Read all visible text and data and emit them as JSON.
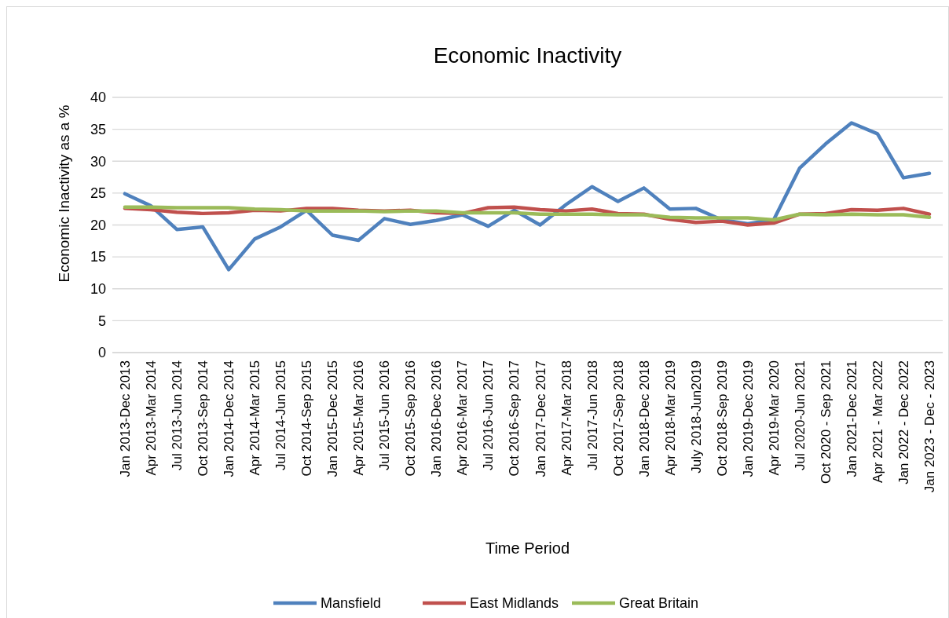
{
  "chart_data": {
    "type": "line",
    "title": "Economic Inactivity",
    "xlabel": "Time Period",
    "ylabel": "Economic Inactivity as a %",
    "categories": [
      "Jan 2013-Dec 2013",
      "Apr 2013-Mar 2014",
      "Jul 2013-Jun 2014",
      "Oct 2013-Sep 2014",
      "Jan 2014-Dec 2014",
      "Apr 2014-Mar 2015",
      "Jul 2014-Jun 2015",
      "Oct 2014-Sep 2015",
      "Jan 2015-Dec 2015",
      "Apr 2015-Mar 2016",
      "Jul 2015-Jun 2016",
      "Oct 2015-Sep 2016",
      "Jan 2016-Dec 2016",
      "Apr 2016-Mar 2017",
      "Jul 2016-Jun 2017",
      "Oct 2016-Sep 2017",
      "Jan 2017-Dec 2017",
      "Apr 2017-Mar 2018",
      "Jul 2017-Jun 2018",
      "Oct 2017-Sep 2018",
      "Jan 2018-Dec 2018",
      "Apr 2018-Mar 2019",
      "July 2018-Jun2019",
      "Oct 2018-Sep 2019",
      "Jan 2019-Dec 2019",
      "Apr 2019-Mar 2020",
      "Jul 2020-Jun 2021",
      "Oct 2020 - Sep 2021",
      "Jan 2021-Dec 2021",
      "Apr 2021 - Mar 2022",
      "Jan 2022 - Dec 2022",
      "Jan 2023 - Dec - 2023"
    ],
    "series": [
      {
        "name": "Mansfield",
        "color": "#4f81bd",
        "values": [
          24.9,
          23.0,
          19.3,
          19.7,
          13.0,
          17.8,
          19.7,
          22.3,
          18.4,
          17.6,
          21.0,
          20.1,
          20.7,
          21.6,
          19.8,
          22.3,
          20.0,
          23.2,
          26.0,
          23.7,
          25.8,
          22.5,
          22.6,
          20.8,
          20.2,
          20.8,
          28.9,
          32.7,
          36.0,
          34.3,
          27.4,
          28.1
        ]
      },
      {
        "name": "East Midlands",
        "color": "#c0504d",
        "values": [
          22.6,
          22.4,
          22.0,
          21.8,
          21.9,
          22.3,
          22.2,
          22.6,
          22.6,
          22.3,
          22.2,
          22.3,
          21.9,
          21.8,
          22.7,
          22.8,
          22.4,
          22.2,
          22.5,
          21.8,
          21.7,
          20.9,
          20.4,
          20.6,
          20.0,
          20.3,
          21.7,
          21.8,
          22.4,
          22.3,
          22.6,
          21.7
        ]
      },
      {
        "name": "Great Britain",
        "color": "#9bbb59",
        "values": [
          22.8,
          22.8,
          22.7,
          22.7,
          22.7,
          22.5,
          22.4,
          22.2,
          22.2,
          22.2,
          22.1,
          22.2,
          22.2,
          21.9,
          21.9,
          21.9,
          21.7,
          21.7,
          21.7,
          21.6,
          21.6,
          21.2,
          21.1,
          21.1,
          21.1,
          20.8,
          21.7,
          21.6,
          21.7,
          21.6,
          21.6,
          21.2
        ]
      }
    ],
    "ylim": [
      0,
      40
    ],
    "yticks": [
      0,
      5,
      10,
      15,
      20,
      25,
      30,
      35,
      40
    ],
    "grid": "y",
    "legend": "bottom",
    "marker": "none",
    "line_style": "solid"
  }
}
